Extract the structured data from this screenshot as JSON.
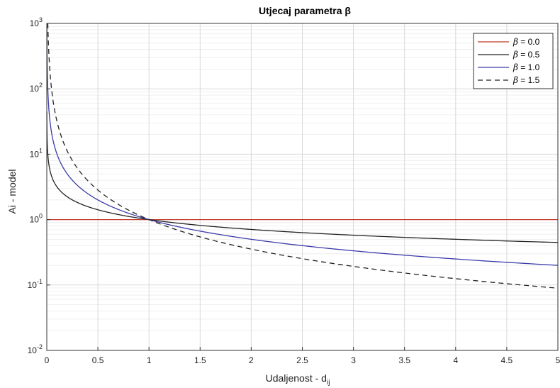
{
  "chart_data": {
    "type": "line",
    "title": "Utjecaj parametra β",
    "xlabel": "Udaljenost - d",
    "xlabel_sub": "ij",
    "ylabel": "Ai - model",
    "xlim": [
      0,
      5
    ],
    "ylim": [
      0.01,
      1000
    ],
    "yscale": "log",
    "grid": true,
    "minor_grid": true,
    "x_ticks": [
      0,
      0.5,
      1,
      1.5,
      2,
      2.5,
      3,
      3.5,
      4,
      4.5,
      5
    ],
    "x_tick_labels": [
      "0",
      "0.5",
      "1",
      "1.5",
      "2",
      "2.5",
      "3",
      "3.5",
      "4",
      "4.5",
      "5"
    ],
    "y_ticks": [
      {
        "base": "10",
        "exp": "-2"
      },
      {
        "base": "10",
        "exp": "-1"
      },
      {
        "base": "10",
        "exp": "0"
      },
      {
        "base": "10",
        "exp": "1"
      },
      {
        "base": "10",
        "exp": "2"
      },
      {
        "base": "10",
        "exp": "3"
      }
    ],
    "legend_position": "top-right",
    "series": [
      {
        "name": "β = 0.0",
        "symbol": "β",
        "suffix": " = 0.0",
        "beta": 0.0,
        "color": "#c0392b",
        "dash": "solid",
        "x": [
          0.01,
          0.05,
          0.1,
          0.2,
          0.5,
          1,
          1.5,
          2,
          2.5,
          3,
          3.5,
          4,
          4.5,
          5
        ],
        "y": [
          1,
          1,
          1,
          1,
          1,
          1,
          1,
          1,
          1,
          1,
          1,
          1,
          1,
          1
        ]
      },
      {
        "name": "β = 0.5",
        "symbol": "β",
        "suffix": " = 0.5",
        "beta": 0.5,
        "color": "#222222",
        "dash": "solid",
        "x": [
          0.01,
          0.05,
          0.1,
          0.2,
          0.5,
          1,
          1.5,
          2,
          2.5,
          3,
          3.5,
          4,
          4.5,
          5
        ],
        "y": [
          10,
          4.47,
          3.16,
          2.24,
          1.41,
          1,
          0.82,
          0.71,
          0.63,
          0.58,
          0.53,
          0.5,
          0.47,
          0.45
        ]
      },
      {
        "name": "β = 1.0",
        "symbol": "β",
        "suffix": " = 1.0",
        "beta": 1.0,
        "color": "#3a3aa8",
        "dash": "solid",
        "x": [
          0.01,
          0.05,
          0.1,
          0.2,
          0.5,
          1,
          1.5,
          2,
          2.5,
          3,
          3.5,
          4,
          4.5,
          5
        ],
        "y": [
          100,
          20,
          10,
          5,
          2,
          1,
          0.67,
          0.5,
          0.4,
          0.33,
          0.29,
          0.25,
          0.22,
          0.2
        ]
      },
      {
        "name": "β = 1.5",
        "symbol": "β",
        "suffix": " = 1.5",
        "beta": 1.5,
        "color": "#222222",
        "dash": "dashed",
        "x": [
          0.01,
          0.05,
          0.1,
          0.2,
          0.5,
          1,
          1.5,
          2,
          2.5,
          3,
          3.5,
          4,
          4.5,
          5
        ],
        "y": [
          1000,
          89.4,
          31.6,
          11.2,
          2.83,
          1,
          0.54,
          0.35,
          0.25,
          0.19,
          0.15,
          0.13,
          0.1,
          0.09
        ]
      }
    ]
  }
}
